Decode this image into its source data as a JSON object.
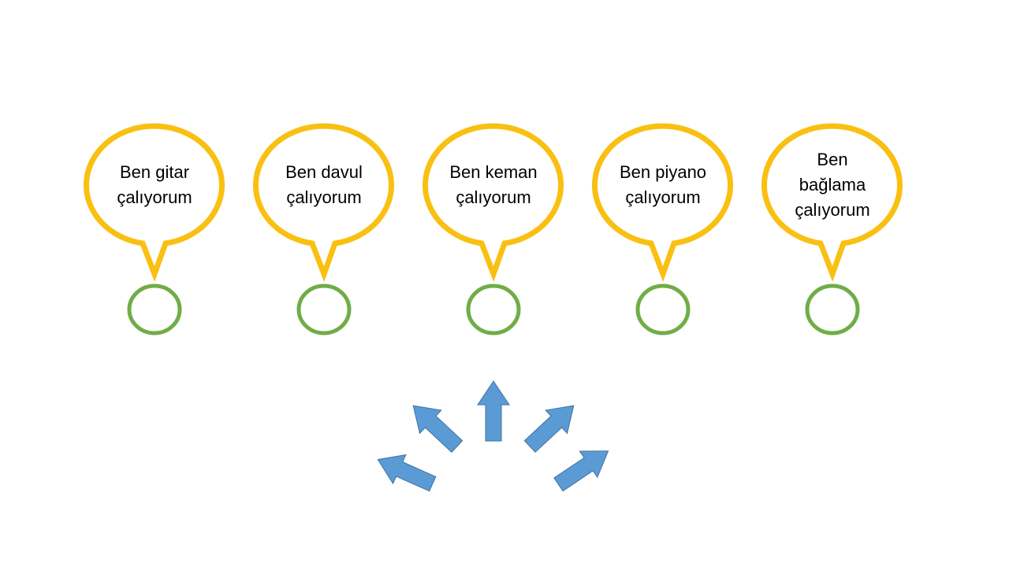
{
  "colors": {
    "bubble_stroke": "#F9C012",
    "circle_stroke": "#70AD47",
    "arrow_fill": "#5B9BD5",
    "arrow_stroke": "#41719C",
    "background": "#FFFFFF"
  },
  "bubbles": [
    {
      "lines": [
        "Ben gitar",
        "çalıyorum"
      ]
    },
    {
      "lines": [
        "Ben davul",
        "çalıyorum"
      ]
    },
    {
      "lines": [
        "Ben keman",
        "çalıyorum"
      ]
    },
    {
      "lines": [
        "Ben piyano",
        "çalıyorum"
      ]
    },
    {
      "lines": [
        "Ben",
        "bağlama",
        "çalıyorum"
      ]
    }
  ],
  "arrows": [
    {
      "direction": "up-left-low"
    },
    {
      "direction": "up-left"
    },
    {
      "direction": "up"
    },
    {
      "direction": "up-right"
    },
    {
      "direction": "up-right-low"
    }
  ]
}
